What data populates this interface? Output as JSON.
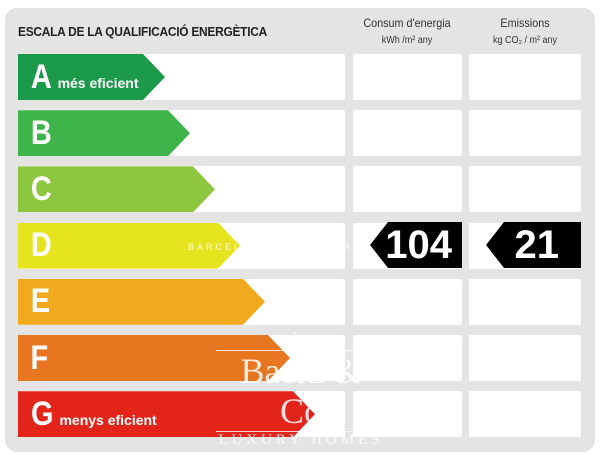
{
  "header": {
    "title": "ESCALA DE LA QUALIFICACIÓ ENERGÈTICA",
    "energy_column": {
      "label": "Consum d'energia",
      "unit": "kWh /m² any"
    },
    "emissions_column": {
      "label": "Emissions",
      "unit": "kg CO₂ / m² any"
    }
  },
  "ratings": [
    {
      "letter": "A",
      "desc": "més eficient",
      "color": "#1b9a4a"
    },
    {
      "letter": "B",
      "desc": "",
      "color": "#3db54a"
    },
    {
      "letter": "C",
      "desc": "",
      "color": "#8dc63f"
    },
    {
      "letter": "D",
      "desc": "",
      "color": "#e5e41f"
    },
    {
      "letter": "E",
      "desc": "",
      "color": "#f1a91d"
    },
    {
      "letter": "F",
      "desc": "",
      "color": "#e8751f"
    },
    {
      "letter": "G",
      "desc": "menys eficient",
      "color": "#e2241b"
    }
  ],
  "current_rating": "D",
  "energy_value": "104",
  "emissions_value": "21",
  "watermark": {
    "by": "by",
    "brand": "Baerz & Co",
    "tagline": "LUXURY HOMES",
    "partial": "BARCEL            EXPERT"
  }
}
